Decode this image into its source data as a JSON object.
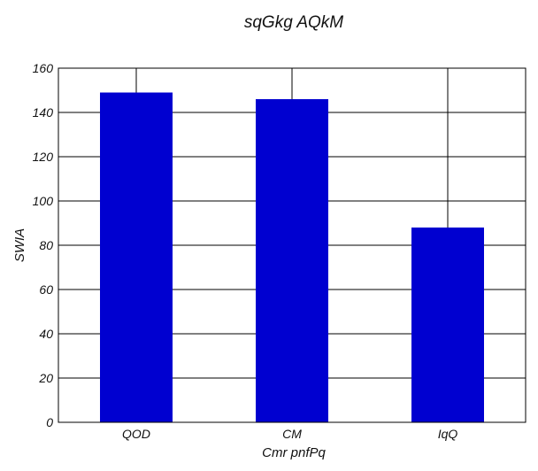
{
  "chart_data": {
    "type": "bar",
    "title": "sqGkg AQkM",
    "xlabel": "Cmr pnfPq",
    "ylabel": "SWIA",
    "categories": [
      "QOD",
      "CM",
      "IqQ"
    ],
    "values": [
      149,
      146,
      88
    ],
    "ylim": [
      0,
      160
    ],
    "yticks": [
      0,
      20,
      40,
      60,
      80,
      100,
      120,
      140,
      160
    ],
    "grid": true,
    "legend": "none",
    "bar_color": "#0000d0"
  }
}
